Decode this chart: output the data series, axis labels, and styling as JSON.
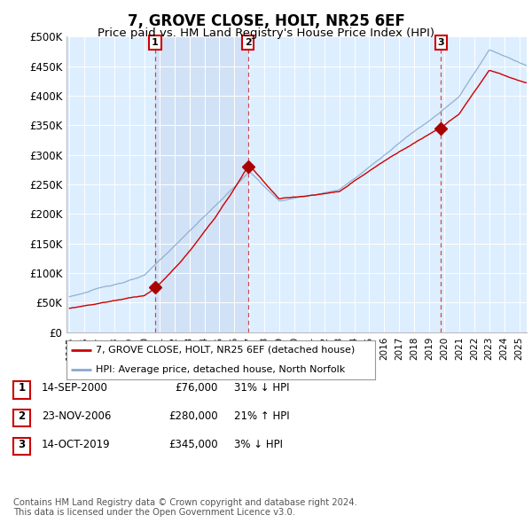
{
  "title": "7, GROVE CLOSE, HOLT, NR25 6EF",
  "subtitle": "Price paid vs. HM Land Registry's House Price Index (HPI)",
  "ylim": [
    0,
    500000
  ],
  "yticks": [
    0,
    50000,
    100000,
    150000,
    200000,
    250000,
    300000,
    350000,
    400000,
    450000,
    500000
  ],
  "ytick_labels": [
    "£0",
    "£50K",
    "£100K",
    "£150K",
    "£200K",
    "£250K",
    "£300K",
    "£350K",
    "£400K",
    "£450K",
    "£500K"
  ],
  "xlim_start": 1994.8,
  "xlim_end": 2025.5,
  "bg_color": "#ddeeff",
  "highlight_color": "#cddff5",
  "line_color_property": "#cc0000",
  "line_color_hpi": "#88aacc",
  "sale_marker_color": "#aa0000",
  "sale_dates": [
    2000.71,
    2006.9,
    2019.79
  ],
  "sale_prices": [
    76000,
    280000,
    345000
  ],
  "sale_labels": [
    "1",
    "2",
    "3"
  ],
  "legend_property": "7, GROVE CLOSE, HOLT, NR25 6EF (detached house)",
  "legend_hpi": "HPI: Average price, detached house, North Norfolk",
  "table_entries": [
    {
      "num": "1",
      "date": "14-SEP-2000",
      "price": "£76,000",
      "hpi": "31% ↓ HPI"
    },
    {
      "num": "2",
      "date": "23-NOV-2006",
      "price": "£280,000",
      "hpi": "21% ↑ HPI"
    },
    {
      "num": "3",
      "date": "14-OCT-2019",
      "price": "£345,000",
      "hpi": "3% ↓ HPI"
    }
  ],
  "footnote": "Contains HM Land Registry data © Crown copyright and database right 2024.\nThis data is licensed under the Open Government Licence v3.0."
}
